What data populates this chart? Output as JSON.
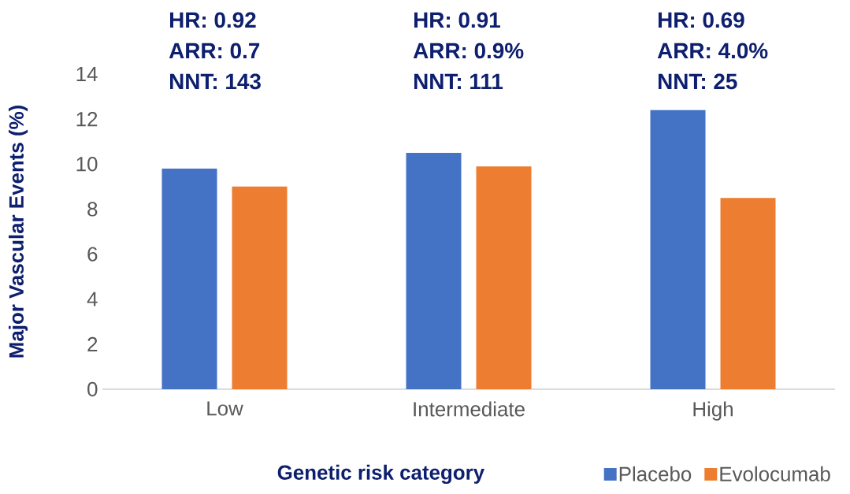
{
  "chart_data": {
    "type": "bar",
    "xlabel": "Genetic risk category",
    "ylabel": "Major Vascular Events (%)",
    "categories": [
      "Low",
      "Intermediate",
      "High"
    ],
    "series": [
      {
        "name": "Placebo",
        "color": "#4472c4",
        "values": [
          9.8,
          10.5,
          12.4
        ]
      },
      {
        "name": "Evolocumab",
        "color": "#ed7d31",
        "values": [
          9.0,
          9.9,
          8.5
        ]
      }
    ],
    "ylim": [
      0,
      14
    ],
    "yticks": [
      0,
      2,
      4,
      6,
      8,
      10,
      12,
      14
    ],
    "grid": false,
    "legend": "bottom right",
    "annotations": [
      "HR: 0.92",
      "ARR: 0.7",
      "NNT: 143",
      "HR: 0.91",
      "ARR: 0.9%",
      "NNT: 111",
      "HR: 0.69",
      "ARR: 4.0%",
      "NNT: 25"
    ]
  }
}
